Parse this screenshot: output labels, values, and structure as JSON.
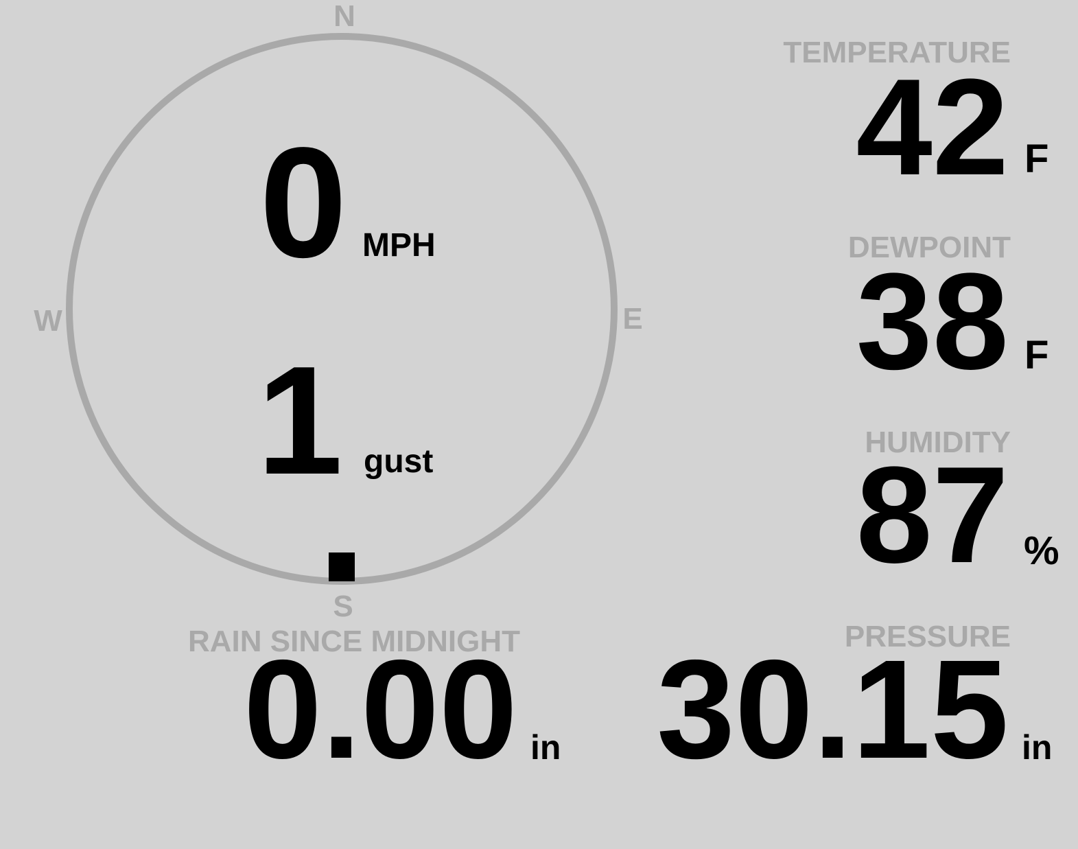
{
  "wind": {
    "compass": {
      "n": "N",
      "e": "E",
      "s": "S",
      "w": "W"
    },
    "speed": "0",
    "speed_unit": "MPH",
    "gust": "1",
    "gust_unit": "gust",
    "direction_deg": 180
  },
  "temperature": {
    "label": "TEMPERATURE",
    "value": "42",
    "unit": "F"
  },
  "dewpoint": {
    "label": "DEWPOINT",
    "value": "38",
    "unit": "F"
  },
  "humidity": {
    "label": "HUMIDITY",
    "value": "87",
    "unit": "%"
  },
  "rain": {
    "label": "RAIN SINCE MIDNIGHT",
    "value": "0.00",
    "unit": "in"
  },
  "pressure": {
    "label": "PRESSURE",
    "value": "30.15",
    "unit": "in"
  },
  "colors": {
    "background": "#d3d3d3",
    "muted": "#a9a9a9",
    "value": "#000000"
  }
}
